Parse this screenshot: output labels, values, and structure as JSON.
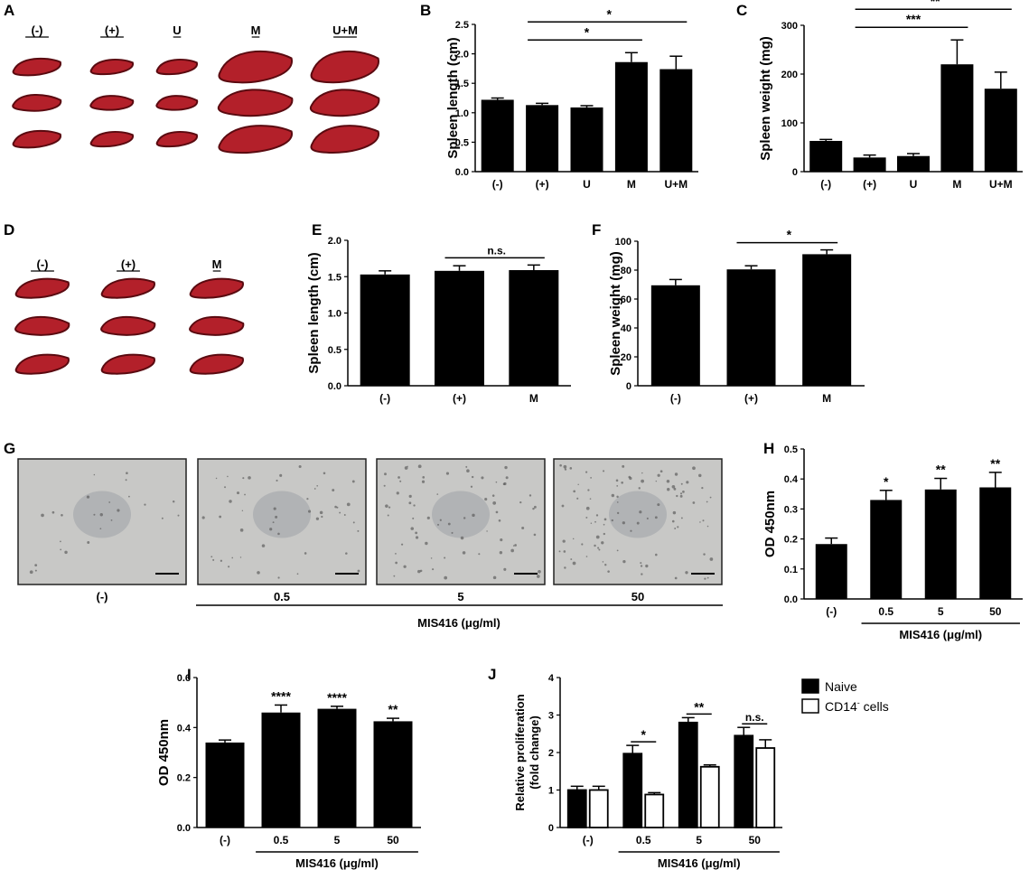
{
  "figure": {
    "panel_labels": [
      "A",
      "B",
      "C",
      "D",
      "E",
      "F",
      "G",
      "H",
      "I",
      "J"
    ],
    "photo_A": {
      "groups": [
        "(-)",
        "(+)",
        "U",
        "M",
        "U+M"
      ]
    },
    "photo_D": {
      "groups": [
        "(-)",
        "(+)",
        "M"
      ]
    },
    "micrographs_G": {
      "labels": [
        "(-)",
        "0.5",
        "5",
        "50"
      ],
      "axis_label": "MIS416 (μg/ml)"
    },
    "colors": {
      "bar": "#000000",
      "open_bar": "#ffffff",
      "spleen_dark": "#5a0a10",
      "spleen_light": "#b3202a",
      "micrograph_bg": "#c8c8c6"
    }
  },
  "chart_data": [
    {
      "panel": "B",
      "type": "bar",
      "categories": [
        "(-)",
        "(+)",
        "U",
        "M",
        "U+M"
      ],
      "values": [
        1.22,
        1.13,
        1.09,
        1.86,
        1.74
      ],
      "errors": [
        0.03,
        0.03,
        0.03,
        0.16,
        0.22
      ],
      "ylabel": "Spleen length (cm)",
      "ylim": [
        0,
        2.5
      ],
      "yticks": [
        "0.0",
        "0.5",
        "1.0",
        "1.5",
        "2.0",
        "2.5"
      ],
      "significance": [
        {
          "from": "(+)",
          "to": "M",
          "label": "*"
        },
        {
          "from": "(+)",
          "to": "U+M",
          "label": "*"
        }
      ]
    },
    {
      "panel": "C",
      "type": "bar",
      "categories": [
        "(-)",
        "(+)",
        "U",
        "M",
        "U+M"
      ],
      "values": [
        63,
        29,
        32,
        220,
        170
      ],
      "errors": [
        3,
        5,
        5,
        50,
        34
      ],
      "ylabel": "Spleen weight (mg)",
      "ylim": [
        0,
        300
      ],
      "yticks": [
        "0",
        "100",
        "200",
        "300"
      ],
      "significance": [
        {
          "from": "(+)",
          "to": "M",
          "label": "***"
        },
        {
          "from": "(+)",
          "to": "U+M",
          "label": "**"
        }
      ]
    },
    {
      "panel": "E",
      "type": "bar",
      "categories": [
        "(-)",
        "(+)",
        "M"
      ],
      "values": [
        1.53,
        1.58,
        1.59
      ],
      "errors": [
        0.05,
        0.07,
        0.07
      ],
      "ylabel": "Spleen length (cm)",
      "ylim": [
        0,
        2.0
      ],
      "yticks": [
        "0.0",
        "0.5",
        "1.0",
        "1.5",
        "2.0"
      ],
      "significance": [
        {
          "from": "(+)",
          "to": "M",
          "label": "n.s."
        }
      ]
    },
    {
      "panel": "F",
      "type": "bar",
      "categories": [
        "(-)",
        "(+)",
        "M"
      ],
      "values": [
        69.5,
        80.5,
        91
      ],
      "errors": [
        4,
        2.5,
        3
      ],
      "ylabel": "Spleen weight (mg)",
      "ylim": [
        0,
        100
      ],
      "yticks": [
        "0",
        "20",
        "40",
        "60",
        "80",
        "100"
      ],
      "significance": [
        {
          "from": "(+)",
          "to": "M",
          "label": "*"
        }
      ]
    },
    {
      "panel": "H",
      "type": "bar",
      "categories": [
        "(-)",
        "0.5",
        "5",
        "50"
      ],
      "values": [
        0.183,
        0.33,
        0.365,
        0.372
      ],
      "errors": [
        0.02,
        0.032,
        0.037,
        0.05
      ],
      "ylabel": "OD 450nm",
      "ylim": [
        0,
        0.5
      ],
      "yticks": [
        "0.0",
        "0.1",
        "0.2",
        "0.3",
        "0.4",
        "0.5"
      ],
      "stars": [
        "",
        "*",
        "**",
        "**"
      ],
      "group_label": "MIS416 (μg/ml)"
    },
    {
      "panel": "I",
      "type": "bar",
      "categories": [
        "(-)",
        "0.5",
        "5",
        "50"
      ],
      "values": [
        0.34,
        0.46,
        0.475,
        0.425
      ],
      "errors": [
        0.01,
        0.03,
        0.01,
        0.012
      ],
      "ylabel": "OD 450nm",
      "ylim": [
        0,
        0.6
      ],
      "yticks": [
        "0.0",
        "0.2",
        "0.4",
        "0.6"
      ],
      "stars": [
        "",
        "****",
        "****",
        "**"
      ],
      "group_label": "MIS416 (μg/ml)"
    },
    {
      "panel": "J",
      "type": "bar",
      "categories": [
        "(-)",
        "0.5",
        "5",
        "50"
      ],
      "series": [
        {
          "name": "Naive",
          "values": [
            1.0,
            1.97,
            2.8,
            2.45
          ],
          "errors": [
            0.1,
            0.22,
            0.13,
            0.22
          ]
        },
        {
          "name": "CD14- cells",
          "values": [
            1.0,
            0.88,
            1.62,
            2.12
          ],
          "errors": [
            0.1,
            0.05,
            0.05,
            0.22
          ]
        }
      ],
      "legend_names": [
        "Naive",
        "CD14",
        "-",
        " cells"
      ],
      "ylabel_lines": [
        "Relative proliferation",
        "(fold change)"
      ],
      "ylim": [
        0,
        4
      ],
      "yticks": [
        "0",
        "1",
        "2",
        "3",
        "4"
      ],
      "significance": [
        "*",
        "**",
        "n.s."
      ],
      "group_label": "MIS416 (μg/ml)"
    }
  ]
}
